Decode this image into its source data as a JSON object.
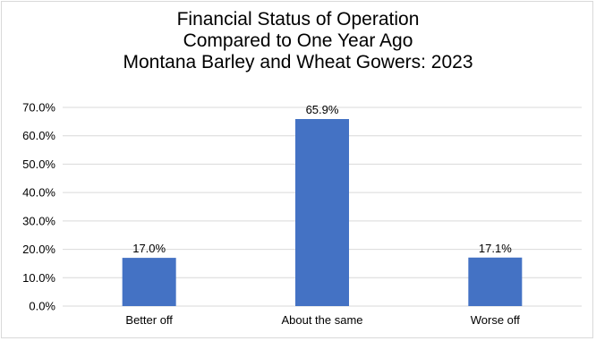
{
  "chart_data": {
    "type": "bar",
    "title_lines": [
      "Financial Status of Operation",
      "Compared to One Year Ago",
      "Montana Barley and Wheat Gowers:  2023"
    ],
    "categories": [
      "Better off",
      "About the same",
      "Worse off"
    ],
    "values": [
      17.0,
      65.9,
      17.1
    ],
    "data_labels": [
      "17.0%",
      "65.9%",
      "17.1%"
    ],
    "y_ticks": [
      "0.0%",
      "10.0%",
      "20.0%",
      "30.0%",
      "40.0%",
      "50.0%",
      "60.0%",
      "70.0%"
    ],
    "ylim": [
      0,
      70
    ],
    "grid": true,
    "legend": "none",
    "bar_color": "#4472c4",
    "grid_color": "#d9d9d9"
  }
}
